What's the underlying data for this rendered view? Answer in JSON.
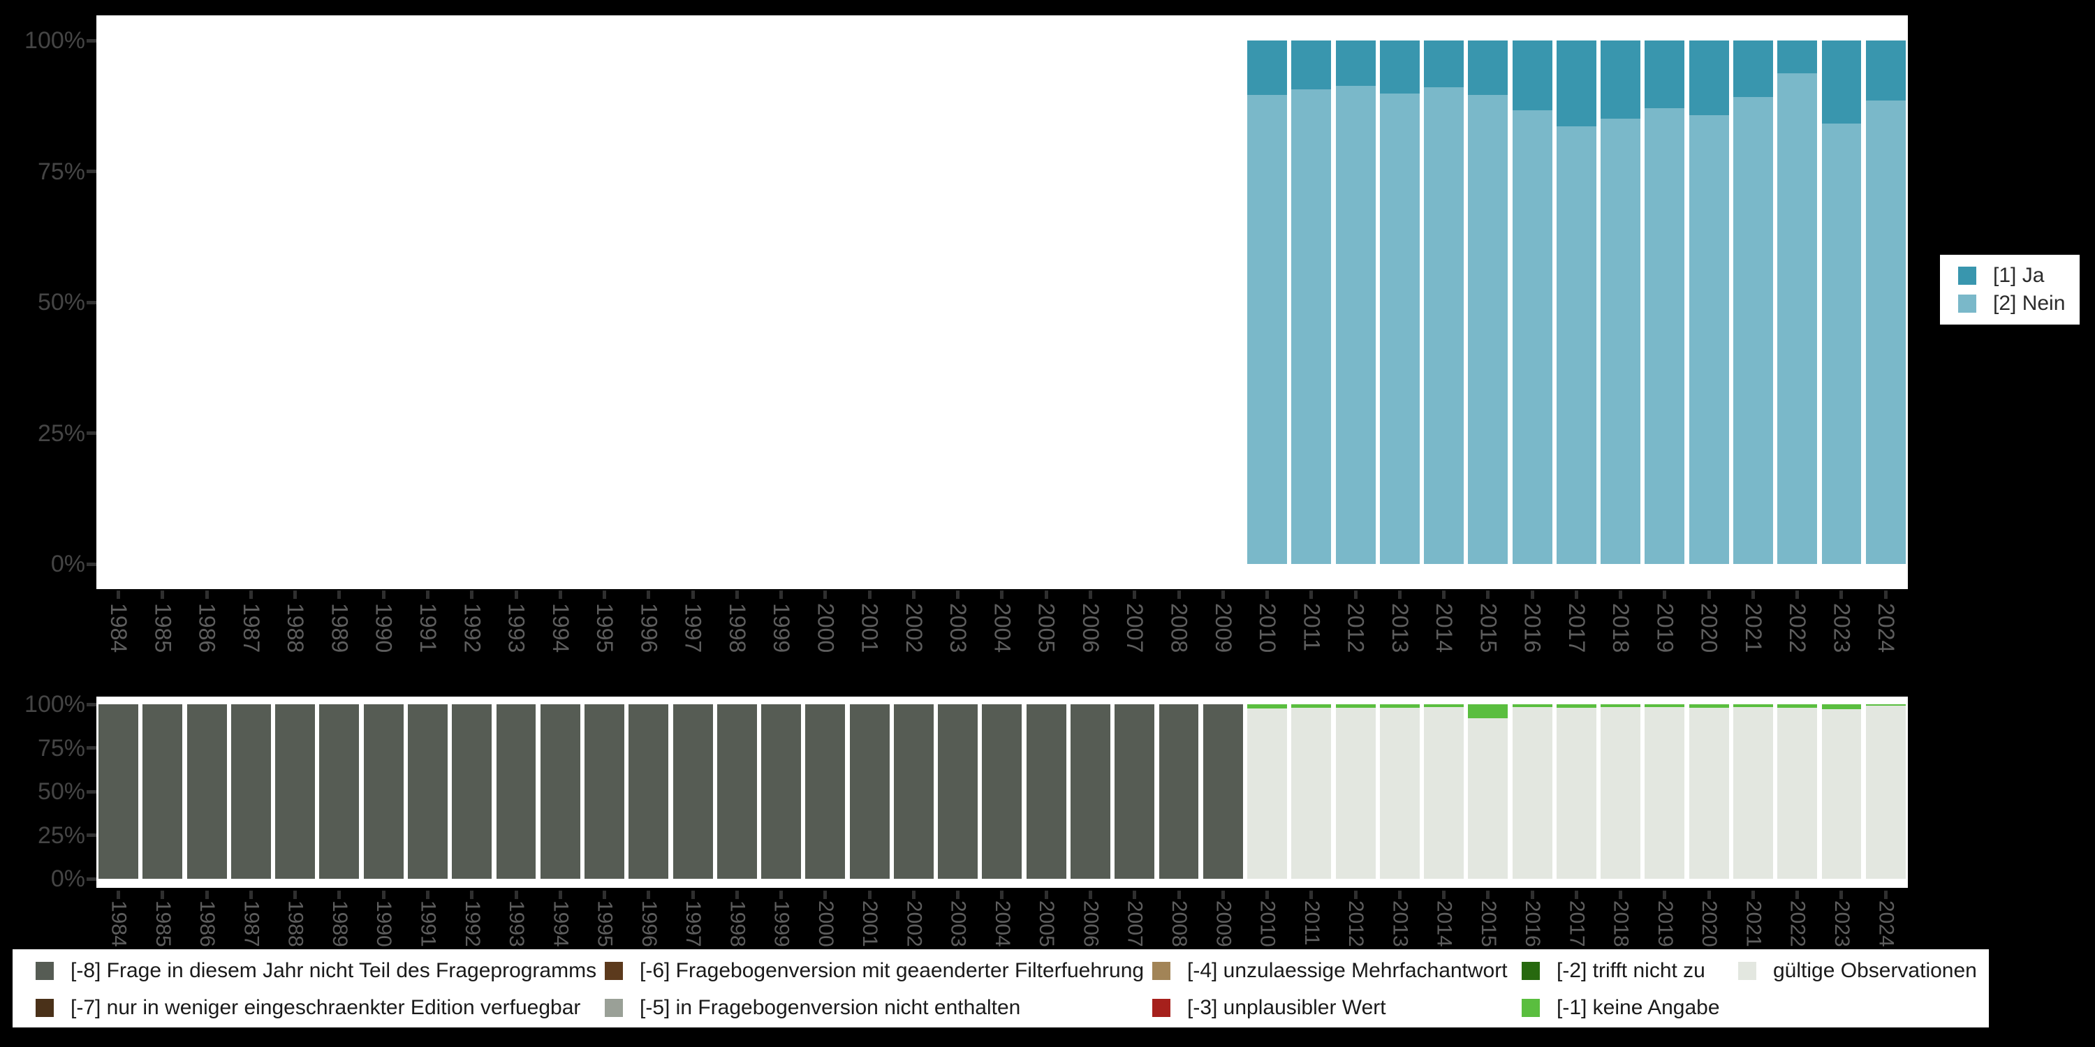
{
  "years": [
    "1984",
    "1985",
    "1986",
    "1987",
    "1988",
    "1989",
    "1990",
    "1991",
    "1992",
    "1993",
    "1994",
    "1995",
    "1996",
    "1997",
    "1998",
    "1999",
    "2000",
    "2001",
    "2002",
    "2003",
    "2004",
    "2005",
    "2006",
    "2007",
    "2008",
    "2009",
    "2010",
    "2011",
    "2012",
    "2013",
    "2014",
    "2015",
    "2016",
    "2017",
    "2018",
    "2019",
    "2020",
    "2021",
    "2022",
    "2023",
    "2024"
  ],
  "colors": {
    "ja": "#3996ae",
    "nein": "#7ab8c9",
    "missing_8": "#565c54",
    "missing_7": "#4a3119",
    "missing_6": "#5c3a1d",
    "missing_5": "#9aa097",
    "missing_4": "#a28457",
    "missing_3": "#a6201c",
    "missing_2": "#27690f",
    "missing_1": "#5abe3f",
    "valid": "#e3e7e0",
    "background": "#000000",
    "panel": "#ffffff"
  },
  "top_chart": {
    "y_ticks": [
      "100%",
      "75%",
      "50%",
      "25%",
      "0%"
    ],
    "legend": [
      {
        "label": "[1] Ja",
        "color": "#3996ae"
      },
      {
        "label": "[2] Nein",
        "color": "#7ab8c9"
      }
    ]
  },
  "bottom_chart": {
    "y_ticks": [
      "100%",
      "75%",
      "50%",
      "25%",
      "0%"
    ]
  },
  "missing_legend": {
    "items": [
      {
        "label": "[-8] Frage in diesem Jahr nicht Teil des Frageprogramms",
        "color": "#565c54",
        "row": 0,
        "col": 0
      },
      {
        "label": "[-7] nur in weniger eingeschraenkter Edition verfuegbar",
        "color": "#4a3119",
        "row": 1,
        "col": 0
      },
      {
        "label": "[-6] Fragebogenversion mit geaenderter Filterfuehrung",
        "color": "#5c3a1d",
        "row": 0,
        "col": 1
      },
      {
        "label": "[-5] in Fragebogenversion nicht enthalten",
        "color": "#9aa097",
        "row": 1,
        "col": 1
      },
      {
        "label": "[-4] unzulaessige Mehrfachantwort",
        "color": "#a28457",
        "row": 0,
        "col": 2
      },
      {
        "label": "[-3] unplausibler Wert",
        "color": "#a6201c",
        "row": 1,
        "col": 2
      },
      {
        "label": "[-2] trifft nicht zu",
        "color": "#27690f",
        "row": 0,
        "col": 3
      },
      {
        "label": "[-1] keine Angabe",
        "color": "#5abe3f",
        "row": 1,
        "col": 3
      },
      {
        "label": "gültige Observationen",
        "color": "#e3e7e0",
        "row": 0,
        "col": 4
      }
    ]
  },
  "chart_data": [
    {
      "type": "bar",
      "stacked": true,
      "title": "",
      "xlabel": "",
      "ylabel": "",
      "ylim": [
        0,
        100
      ],
      "y_tick_labels": [
        "0%",
        "25%",
        "50%",
        "75%",
        "100%"
      ],
      "legend_position": "right",
      "grid": false,
      "categories": [
        "1984",
        "1985",
        "1986",
        "1987",
        "1988",
        "1989",
        "1990",
        "1991",
        "1992",
        "1993",
        "1994",
        "1995",
        "1996",
        "1997",
        "1998",
        "1999",
        "2000",
        "2001",
        "2002",
        "2003",
        "2004",
        "2005",
        "2006",
        "2007",
        "2008",
        "2009",
        "2010",
        "2011",
        "2012",
        "2013",
        "2014",
        "2015",
        "2016",
        "2017",
        "2018",
        "2019",
        "2020",
        "2021",
        "2022",
        "2023",
        "2024"
      ],
      "series": [
        {
          "name": "[1] Ja",
          "color": "#3996ae",
          "values": [
            null,
            null,
            null,
            null,
            null,
            null,
            null,
            null,
            null,
            null,
            null,
            null,
            null,
            null,
            null,
            null,
            null,
            null,
            null,
            null,
            null,
            null,
            null,
            null,
            null,
            null,
            10.4,
            9.4,
            8.6,
            10.1,
            8.9,
            10.4,
            13.3,
            16.4,
            14.9,
            12.9,
            14.3,
            10.8,
            6.2,
            15.9,
            11.4
          ]
        },
        {
          "name": "[2] Nein",
          "color": "#7ab8c9",
          "values": [
            null,
            null,
            null,
            null,
            null,
            null,
            null,
            null,
            null,
            null,
            null,
            null,
            null,
            null,
            null,
            null,
            null,
            null,
            null,
            null,
            null,
            null,
            null,
            null,
            null,
            null,
            89.6,
            90.6,
            91.4,
            89.9,
            91.1,
            89.6,
            86.7,
            83.6,
            85.1,
            87.1,
            85.7,
            89.2,
            93.8,
            84.1,
            88.6
          ]
        }
      ]
    },
    {
      "type": "bar",
      "stacked": true,
      "title": "",
      "xlabel": "",
      "ylabel": "",
      "ylim": [
        0,
        100
      ],
      "y_tick_labels": [
        "0%",
        "25%",
        "50%",
        "75%",
        "100%"
      ],
      "legend_position": "bottom",
      "grid": false,
      "categories": [
        "1984",
        "1985",
        "1986",
        "1987",
        "1988",
        "1989",
        "1990",
        "1991",
        "1992",
        "1993",
        "1994",
        "1995",
        "1996",
        "1997",
        "1998",
        "1999",
        "2000",
        "2001",
        "2002",
        "2003",
        "2004",
        "2005",
        "2006",
        "2007",
        "2008",
        "2009",
        "2010",
        "2011",
        "2012",
        "2013",
        "2014",
        "2015",
        "2016",
        "2017",
        "2018",
        "2019",
        "2020",
        "2021",
        "2022",
        "2023",
        "2024"
      ],
      "series": [
        {
          "name": "[-1] keine Angabe",
          "color": "#5abe3f",
          "values": [
            null,
            null,
            null,
            null,
            null,
            null,
            null,
            null,
            null,
            null,
            null,
            null,
            null,
            null,
            null,
            null,
            null,
            null,
            null,
            null,
            null,
            null,
            null,
            null,
            null,
            null,
            2.3,
            1.9,
            2.1,
            1.9,
            1.4,
            8.0,
            1.6,
            1.9,
            1.4,
            1.4,
            1.9,
            1.4,
            2.1,
            2.7,
            0.8
          ]
        },
        {
          "name": "gültige Observationen",
          "color": "#e3e7e0",
          "values": [
            null,
            null,
            null,
            null,
            null,
            null,
            null,
            null,
            null,
            null,
            null,
            null,
            null,
            null,
            null,
            null,
            null,
            null,
            null,
            null,
            null,
            null,
            null,
            null,
            null,
            null,
            97.7,
            98.1,
            97.9,
            98.1,
            98.6,
            92.0,
            98.4,
            98.1,
            98.6,
            98.6,
            98.1,
            98.6,
            97.9,
            97.3,
            99.2
          ]
        },
        {
          "name": "[-8] Frage in diesem Jahr nicht Teil des Frageprogramms",
          "color": "#565c54",
          "values": [
            100,
            100,
            100,
            100,
            100,
            100,
            100,
            100,
            100,
            100,
            100,
            100,
            100,
            100,
            100,
            100,
            100,
            100,
            100,
            100,
            100,
            100,
            100,
            100,
            100,
            100,
            null,
            null,
            null,
            null,
            null,
            null,
            null,
            null,
            null,
            null,
            null,
            null,
            null,
            null,
            null
          ]
        }
      ]
    }
  ]
}
